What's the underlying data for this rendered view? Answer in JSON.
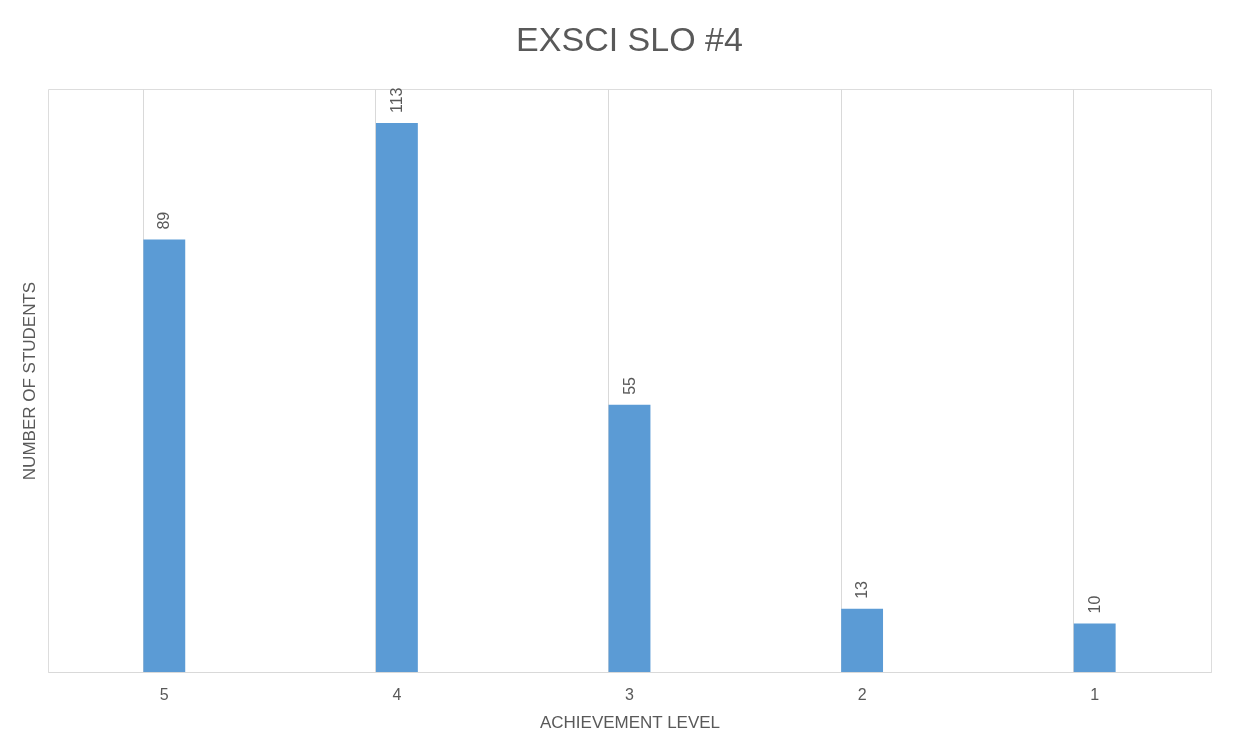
{
  "chart_data": {
    "type": "bar",
    "title": "EXSCI SLO #4",
    "xlabel": "ACHIEVEMENT LEVEL",
    "ylabel": "NUMBER OF STUDENTS",
    "categories": [
      "5",
      "4",
      "3",
      "2",
      "1"
    ],
    "values": [
      89,
      113,
      55,
      13,
      10
    ],
    "color": "#5b9bd5",
    "data_labels": true,
    "grid": "x"
  }
}
